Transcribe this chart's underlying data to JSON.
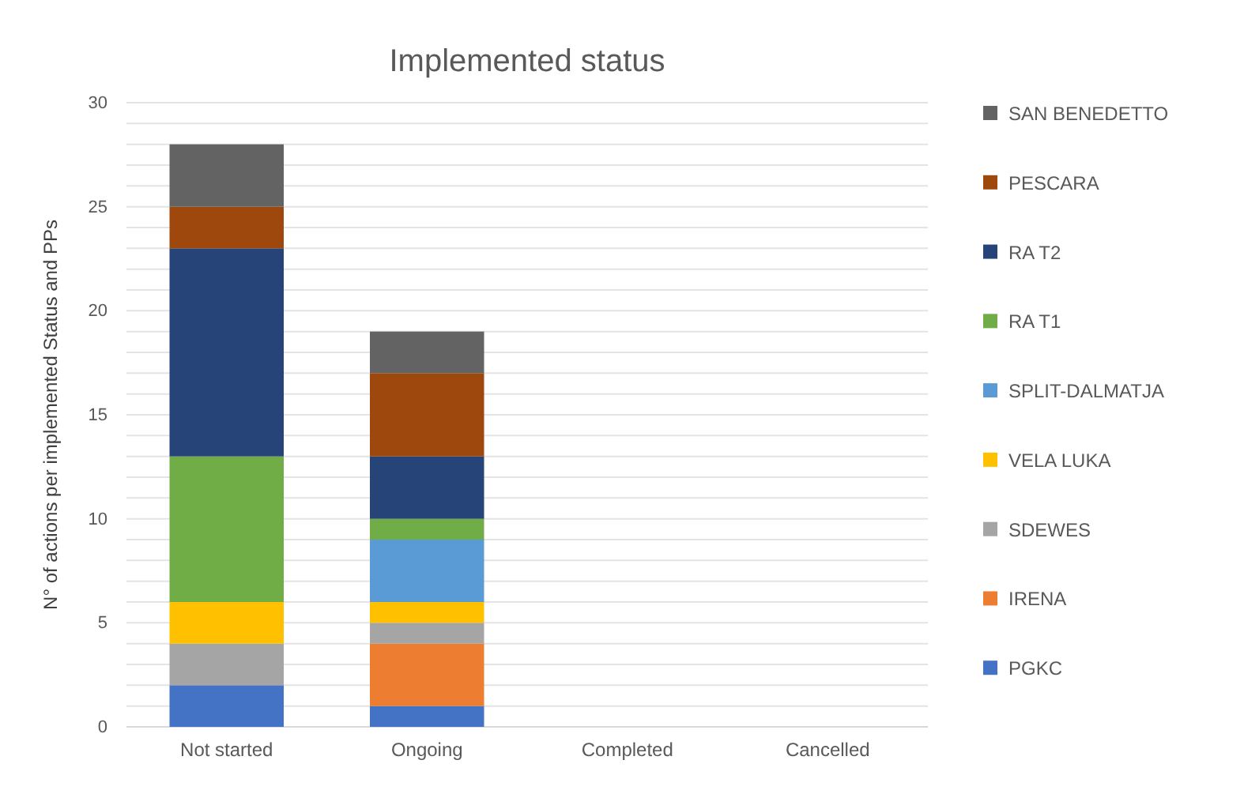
{
  "chart_data": {
    "type": "bar",
    "title": "Implemented status",
    "ylabel": "N° of actions per implemented Status and PPs",
    "categories": [
      "Not started",
      "Ongoing",
      "Completed",
      "Cancelled"
    ],
    "stacked": true,
    "legend": "right",
    "grid": "y",
    "ylim": [
      0,
      30
    ],
    "yticks": [
      0,
      {
        "value": 1,
        "label": null
      },
      {
        "value": 2,
        "label": null
      },
      {
        "value": 3,
        "label": null
      },
      {
        "value": 4,
        "label": null
      },
      5,
      {
        "value": 6,
        "label": null
      },
      {
        "value": 7,
        "label": null
      },
      {
        "value": 8,
        "label": null
      },
      {
        "value": 9,
        "label": null
      },
      10,
      {
        "value": 11,
        "label": null
      },
      {
        "value": 12,
        "label": null
      },
      {
        "value": 13,
        "label": null
      },
      {
        "value": 14,
        "label": null
      },
      15,
      {
        "value": 16,
        "label": null
      },
      {
        "value": 17,
        "label": null
      },
      {
        "value": 18,
        "label": null
      },
      {
        "value": 19,
        "label": null
      },
      20,
      {
        "value": 21,
        "label": null
      },
      {
        "value": 22,
        "label": null
      },
      {
        "value": 23,
        "label": null
      },
      {
        "value": 24,
        "label": null
      },
      25,
      {
        "value": 26,
        "label": null
      },
      {
        "value": 27,
        "label": null
      },
      {
        "value": 28,
        "label": null
      },
      {
        "value": 29,
        "label": null
      },
      30
    ],
    "series": [
      {
        "name": "PGKC",
        "color": "#4472c4",
        "values": [
          2,
          1,
          0,
          0
        ]
      },
      {
        "name": "IRENA",
        "color": "#ed7d31",
        "values": [
          0,
          3,
          0,
          0
        ]
      },
      {
        "name": "SDEWES",
        "color": "#a5a5a5",
        "values": [
          2,
          1,
          0,
          0
        ]
      },
      {
        "name": "VELA LUKA",
        "color": "#ffc000",
        "values": [
          2,
          1,
          0,
          0
        ]
      },
      {
        "name": "SPLIT-DALMATJA",
        "color": "#5b9bd5",
        "values": [
          0,
          3,
          0,
          0
        ]
      },
      {
        "name": "RA T1",
        "color": "#70ad47",
        "values": [
          7,
          1,
          0,
          0
        ]
      },
      {
        "name": "RA T2",
        "color": "#264478",
        "values": [
          10,
          3,
          0,
          0
        ]
      },
      {
        "name": "PESCARA",
        "color": "#9e480e",
        "values": [
          2,
          4,
          0,
          0
        ]
      },
      {
        "name": "SAN BENEDETTO",
        "color": "#636363",
        "values": [
          3,
          2,
          0,
          0
        ]
      }
    ]
  }
}
